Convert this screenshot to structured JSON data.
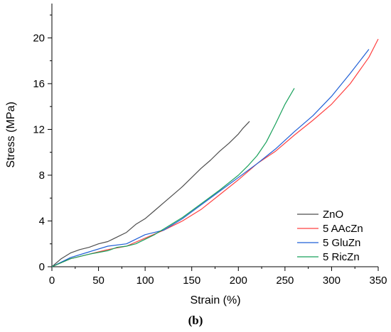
{
  "chart_data": {
    "type": "line",
    "caption": "(b)",
    "xlabel": "Strain (%)",
    "ylabel": "Stress (MPa)",
    "xlim": [
      0,
      350
    ],
    "ylim": [
      0,
      23
    ],
    "xticks": [
      0,
      50,
      100,
      150,
      200,
      250,
      300,
      350
    ],
    "yticks": [
      0,
      4,
      8,
      12,
      16,
      20
    ],
    "grid": false,
    "legend_position": "bottom-right",
    "series": [
      {
        "name": "ZnO",
        "color": "#4d4d4d",
        "points": [
          [
            0,
            0
          ],
          [
            10,
            0.7
          ],
          [
            20,
            1.2
          ],
          [
            30,
            1.5
          ],
          [
            40,
            1.7
          ],
          [
            50,
            2.0
          ],
          [
            60,
            2.2
          ],
          [
            65,
            2.4
          ],
          [
            70,
            2.6
          ],
          [
            80,
            3.0
          ],
          [
            90,
            3.7
          ],
          [
            100,
            4.2
          ],
          [
            110,
            4.9
          ],
          [
            120,
            5.6
          ],
          [
            130,
            6.3
          ],
          [
            140,
            7.0
          ],
          [
            150,
            7.8
          ],
          [
            160,
            8.6
          ],
          [
            170,
            9.3
          ],
          [
            180,
            10.1
          ],
          [
            190,
            10.8
          ],
          [
            200,
            11.6
          ],
          [
            205,
            12.1
          ],
          [
            212,
            12.7
          ]
        ]
      },
      {
        "name": "5 AAcZn",
        "color": "#ff4040",
        "points": [
          [
            0,
            0
          ],
          [
            20,
            0.7
          ],
          [
            40,
            1.1
          ],
          [
            60,
            1.5
          ],
          [
            80,
            1.8
          ],
          [
            100,
            2.5
          ],
          [
            120,
            3.2
          ],
          [
            140,
            4.0
          ],
          [
            160,
            5.0
          ],
          [
            180,
            6.3
          ],
          [
            200,
            7.6
          ],
          [
            220,
            9.0
          ],
          [
            240,
            10.1
          ],
          [
            260,
            11.5
          ],
          [
            280,
            12.8
          ],
          [
            300,
            14.2
          ],
          [
            320,
            16.0
          ],
          [
            340,
            18.3
          ],
          [
            350,
            19.9
          ]
        ]
      },
      {
        "name": "5 GluZn",
        "color": "#1f5fd6",
        "points": [
          [
            0,
            0
          ],
          [
            20,
            0.8
          ],
          [
            40,
            1.3
          ],
          [
            60,
            1.8
          ],
          [
            80,
            2.0
          ],
          [
            100,
            2.8
          ],
          [
            120,
            3.2
          ],
          [
            140,
            4.2
          ],
          [
            160,
            5.4
          ],
          [
            180,
            6.6
          ],
          [
            200,
            7.8
          ],
          [
            220,
            9.0
          ],
          [
            240,
            10.3
          ],
          [
            260,
            11.8
          ],
          [
            280,
            13.2
          ],
          [
            300,
            14.9
          ],
          [
            320,
            16.9
          ],
          [
            340,
            19.0
          ]
        ]
      },
      {
        "name": "5 RicZn",
        "color": "#17a05a",
        "points": [
          [
            0,
            0
          ],
          [
            20,
            0.7
          ],
          [
            40,
            1.1
          ],
          [
            60,
            1.4
          ],
          [
            70,
            1.7
          ],
          [
            80,
            1.8
          ],
          [
            90,
            2.0
          ],
          [
            100,
            2.4
          ],
          [
            110,
            2.8
          ],
          [
            120,
            3.3
          ],
          [
            140,
            4.3
          ],
          [
            160,
            5.5
          ],
          [
            180,
            6.7
          ],
          [
            200,
            8.0
          ],
          [
            210,
            8.8
          ],
          [
            220,
            9.7
          ],
          [
            230,
            10.9
          ],
          [
            240,
            12.5
          ],
          [
            250,
            14.2
          ],
          [
            260,
            15.6
          ]
        ]
      }
    ]
  }
}
